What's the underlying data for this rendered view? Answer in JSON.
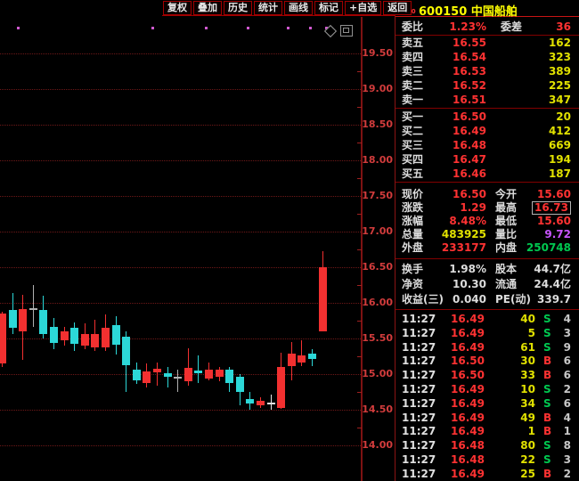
{
  "colors": {
    "red": "#ff3232",
    "yellow": "#e1e100",
    "green": "#00c850",
    "magenta": "#c855ff",
    "white": "#dcdcdc",
    "up": "#f23030",
    "down": "#2cd8d8",
    "flat": "#b0b0b0",
    "flat_white": "#e6e6e6"
  },
  "toolbar": {
    "buttons": [
      "复权",
      "叠加",
      "历史",
      "统计",
      "画线",
      "标记",
      "+自选",
      "返回"
    ]
  },
  "header": {
    "flag_top": "R",
    "flag_bottom": "300",
    "code": "600150",
    "name": "中国船舶"
  },
  "order_book": {
    "weibi_label": "委比",
    "weibi_value": "1.23%",
    "weicha_label": "委差",
    "weicha_value": "36",
    "asks": [
      {
        "label": "卖五",
        "price": "16.55",
        "vol": "162"
      },
      {
        "label": "卖四",
        "price": "16.54",
        "vol": "323"
      },
      {
        "label": "卖三",
        "price": "16.53",
        "vol": "389"
      },
      {
        "label": "卖二",
        "price": "16.52",
        "vol": "225"
      },
      {
        "label": "卖一",
        "price": "16.51",
        "vol": "347"
      }
    ],
    "bids": [
      {
        "label": "买一",
        "price": "16.50",
        "vol": "20"
      },
      {
        "label": "买二",
        "price": "16.49",
        "vol": "412"
      },
      {
        "label": "买三",
        "price": "16.48",
        "vol": "669"
      },
      {
        "label": "买四",
        "price": "16.47",
        "vol": "194"
      },
      {
        "label": "买五",
        "price": "16.46",
        "vol": "187"
      }
    ]
  },
  "stats": [
    {
      "l1": "现价",
      "v1": "16.50",
      "c1": "red",
      "l2": "今开",
      "v2": "15.60",
      "c2": "red"
    },
    {
      "l1": "涨跌",
      "v1": "1.29",
      "c1": "red",
      "l2": "最高",
      "v2": "16.73",
      "c2": "red",
      "box2": true
    },
    {
      "l1": "涨幅",
      "v1": "8.48%",
      "c1": "red",
      "l2": "最低",
      "v2": "15.60",
      "c2": "red"
    },
    {
      "l1": "总量",
      "v1": "483925",
      "c1": "yellow",
      "l2": "量比",
      "v2": "9.72",
      "c2": "magenta"
    },
    {
      "l1": "外盘",
      "v1": "233177",
      "c1": "red",
      "l2": "内盘",
      "v2": "250748",
      "c2": "green"
    }
  ],
  "fundamentals": [
    {
      "l1": "换手",
      "v1": "1.98%",
      "c1": "white",
      "l2": "股本",
      "v2": "44.7亿",
      "c2": "white"
    },
    {
      "l1": "净资",
      "v1": "10.30",
      "c1": "white",
      "l2": "流通",
      "v2": "24.4亿",
      "c2": "white"
    },
    {
      "l1": "收益(三)",
      "v1": "0.040",
      "c1": "white",
      "l2": "PE(动)",
      "v2": "339.7",
      "c2": "white"
    }
  ],
  "ticks": [
    {
      "time": "11:27",
      "price": "16.49",
      "vol": "40",
      "side": "S",
      "count": "4"
    },
    {
      "time": "11:27",
      "price": "16.49",
      "vol": "5",
      "side": "S",
      "count": "3"
    },
    {
      "time": "11:27",
      "price": "16.49",
      "vol": "61",
      "side": "S",
      "count": "9"
    },
    {
      "time": "11:27",
      "price": "16.50",
      "vol": "30",
      "side": "B",
      "count": "6"
    },
    {
      "time": "11:27",
      "price": "16.50",
      "vol": "33",
      "side": "B",
      "count": "6"
    },
    {
      "time": "11:27",
      "price": "16.49",
      "vol": "10",
      "side": "S",
      "count": "2"
    },
    {
      "time": "11:27",
      "price": "16.49",
      "vol": "34",
      "side": "S",
      "count": "6"
    },
    {
      "time": "11:27",
      "price": "16.49",
      "vol": "49",
      "side": "B",
      "count": "4"
    },
    {
      "time": "11:27",
      "price": "16.49",
      "vol": "1",
      "side": "B",
      "count": "1"
    },
    {
      "time": "11:27",
      "price": "16.48",
      "vol": "80",
      "side": "S",
      "count": "8"
    },
    {
      "time": "11:27",
      "price": "16.48",
      "vol": "22",
      "side": "S",
      "count": "3"
    },
    {
      "time": "11:27",
      "price": "16.49",
      "vol": "25",
      "side": "B",
      "count": "2"
    }
  ],
  "chart_data": {
    "type": "candlestick",
    "title": "600150 中国船舶 日K线",
    "y_axis": {
      "min": 14.0,
      "max": 19.5,
      "tick_step": 0.5,
      "labels": [
        "19.50",
        "19.00",
        "18.50",
        "18.00",
        "17.50",
        "17.00",
        "16.50",
        "16.00",
        "15.50",
        "15.00",
        "14.50",
        "14.00"
      ]
    },
    "grid": "dotted-horizontal",
    "marker_dots_x": [
      19,
      170,
      230,
      277,
      322,
      347,
      365
    ],
    "top_right_icons": [
      "diamond-icon",
      "window-icon"
    ],
    "candles": [
      {
        "o": 15.15,
        "h": 15.88,
        "l": 15.1,
        "c": 15.85,
        "dir": "up"
      },
      {
        "o": 15.9,
        "h": 16.14,
        "l": 15.56,
        "c": 15.65,
        "dir": "down"
      },
      {
        "o": 15.6,
        "h": 16.11,
        "l": 15.2,
        "c": 15.91,
        "dir": "up"
      },
      {
        "o": 15.9,
        "h": 16.25,
        "l": 15.66,
        "c": 15.92,
        "dir": "flat"
      },
      {
        "o": 15.9,
        "h": 16.1,
        "l": 15.5,
        "c": 15.56,
        "dir": "down"
      },
      {
        "o": 15.66,
        "h": 15.79,
        "l": 15.35,
        "c": 15.44,
        "dir": "down"
      },
      {
        "o": 15.48,
        "h": 15.66,
        "l": 15.4,
        "c": 15.6,
        "dir": "up"
      },
      {
        "o": 15.65,
        "h": 15.73,
        "l": 15.33,
        "c": 15.43,
        "dir": "down"
      },
      {
        "o": 15.4,
        "h": 15.71,
        "l": 15.35,
        "c": 15.56,
        "dir": "up"
      },
      {
        "o": 15.38,
        "h": 15.76,
        "l": 15.33,
        "c": 15.56,
        "dir": "up"
      },
      {
        "o": 15.38,
        "h": 15.84,
        "l": 15.33,
        "c": 15.65,
        "dir": "up"
      },
      {
        "o": 15.69,
        "h": 15.81,
        "l": 15.28,
        "c": 15.41,
        "dir": "down"
      },
      {
        "o": 15.53,
        "h": 15.6,
        "l": 14.75,
        "c": 15.13,
        "dir": "down"
      },
      {
        "o": 15.06,
        "h": 15.16,
        "l": 14.86,
        "c": 14.91,
        "dir": "down"
      },
      {
        "o": 14.88,
        "h": 15.15,
        "l": 14.81,
        "c": 15.04,
        "dir": "up"
      },
      {
        "o": 15.03,
        "h": 15.16,
        "l": 14.84,
        "c": 15.08,
        "dir": "up"
      },
      {
        "o": 15.01,
        "h": 15.1,
        "l": 14.81,
        "c": 14.96,
        "dir": "down"
      },
      {
        "o": 14.96,
        "h": 15.06,
        "l": 14.75,
        "c": 14.96,
        "dir": "flat"
      },
      {
        "o": 14.9,
        "h": 15.36,
        "l": 14.84,
        "c": 15.09,
        "dir": "up"
      },
      {
        "o": 15.05,
        "h": 15.26,
        "l": 14.88,
        "c": 15.01,
        "dir": "down"
      },
      {
        "o": 14.94,
        "h": 15.16,
        "l": 14.91,
        "c": 15.06,
        "dir": "up"
      },
      {
        "o": 14.96,
        "h": 15.1,
        "l": 14.9,
        "c": 15.06,
        "dir": "up"
      },
      {
        "o": 15.06,
        "h": 15.1,
        "l": 14.75,
        "c": 14.88,
        "dir": "down"
      },
      {
        "o": 14.96,
        "h": 15.0,
        "l": 14.56,
        "c": 14.75,
        "dir": "down"
      },
      {
        "o": 14.65,
        "h": 14.75,
        "l": 14.5,
        "c": 14.59,
        "dir": "down"
      },
      {
        "o": 14.56,
        "h": 14.68,
        "l": 14.53,
        "c": 14.63,
        "dir": "up"
      },
      {
        "o": 14.6,
        "h": 14.71,
        "l": 14.5,
        "c": 14.6,
        "dir": "flat_white"
      },
      {
        "o": 14.53,
        "h": 15.3,
        "l": 14.51,
        "c": 15.1,
        "dir": "up"
      },
      {
        "o": 15.11,
        "h": 15.45,
        "l": 14.91,
        "c": 15.29,
        "dir": "up"
      },
      {
        "o": 15.16,
        "h": 15.48,
        "l": 15.11,
        "c": 15.26,
        "dir": "up"
      },
      {
        "o": 15.29,
        "h": 15.35,
        "l": 15.11,
        "c": 15.21,
        "dir": "down"
      },
      {
        "o": 15.6,
        "h": 16.73,
        "l": 15.6,
        "c": 16.5,
        "dir": "up"
      }
    ]
  }
}
